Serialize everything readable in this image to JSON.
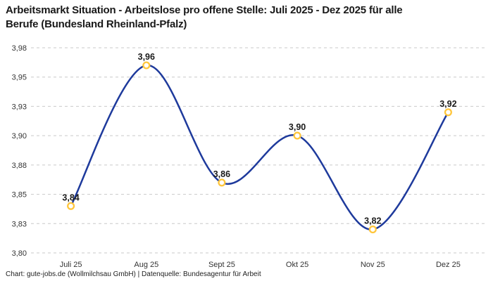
{
  "header": {
    "title_line1": "Arbeitsmarkt Situation - Arbeitslose pro offene Stelle: Juli 2025 - Dez 2025 für alle",
    "title_line2": "Berufe (Bundesland Rheinland-Pfalz)"
  },
  "footer": {
    "credit": "Chart: gute-jobs.de (Wollmilchsau GmbH) | Datenquelle: Bundesagentur für Arbeit"
  },
  "colors": {
    "line": "#1e3a9c",
    "marker_stroke": "#ffc63c",
    "marker_fill": "#ffffff",
    "grid": "#c9c9c9",
    "title": "#191919",
    "tick": "#333333",
    "data_label": "#1a1a1a",
    "background": "#ffffff"
  },
  "chart_data": {
    "type": "line",
    "title": "Arbeitsmarkt Situation - Arbeitslose pro offene Stelle: Juli 2025 - Dez 2025 für alle Berufe (Bundesland Rheinland-Pfalz)",
    "categories": [
      "Juli 25",
      "Aug 25",
      "Sept 25",
      "Okt 25",
      "Nov 25",
      "Dez 25"
    ],
    "values": [
      3.84,
      3.96,
      3.86,
      3.9,
      3.82,
      3.92
    ],
    "value_labels": [
      "3,84",
      "3,96",
      "3,86",
      "3,90",
      "3,82",
      "3,92"
    ],
    "xlabel": "",
    "ylabel": "",
    "ylim": [
      3.8,
      3.975
    ],
    "y_ticks": [
      3.8,
      3.825,
      3.85,
      3.875,
      3.9,
      3.925,
      3.95,
      3.975
    ],
    "y_tick_labels": [
      "3,80",
      "3,83",
      "3,85",
      "3,88",
      "3,90",
      "3,93",
      "3,95",
      "3,98"
    ],
    "grid": "horizontal dashed",
    "legend": "none",
    "line_style": "smooth spline",
    "marker": "open circle"
  }
}
